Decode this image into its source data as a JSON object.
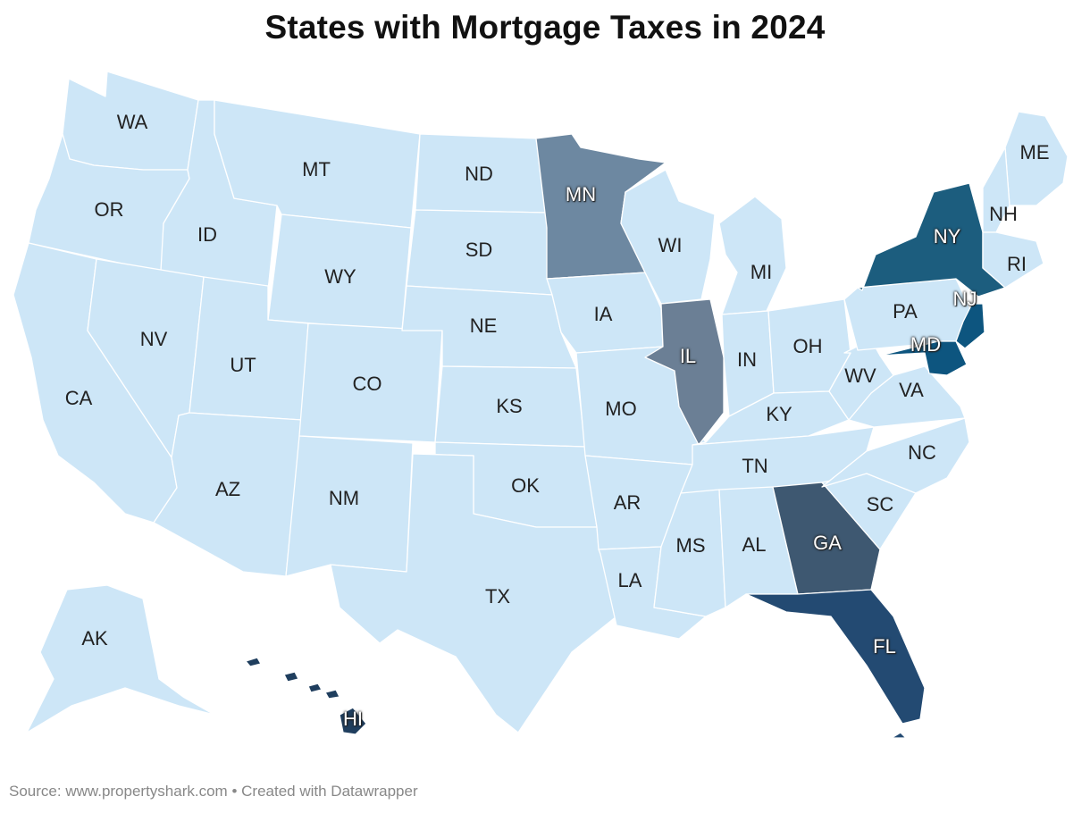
{
  "title": "States with Mortgage Taxes in 2024",
  "footer": {
    "source_label": "Source:",
    "source": "www.propertyshark.com",
    "separator": "•",
    "credit": "Created with Datawrapper"
  },
  "colors": {
    "no_tax": "#cde6f7",
    "MN": "#6d88a1",
    "IL": "#6b7f95",
    "NY": "#1c5d7e",
    "NJ": "#0d557f",
    "MD": "#0d557f",
    "GA": "#3e5871",
    "FL": "#234a72",
    "HI": "#1f3e5e",
    "border": "#ffffff"
  },
  "states_with_tax": [
    "MN",
    "IL",
    "NY",
    "NJ",
    "MD",
    "GA",
    "FL",
    "HI"
  ],
  "labels": [
    "WA",
    "OR",
    "CA",
    "ID",
    "NV",
    "MT",
    "WY",
    "UT",
    "AZ",
    "CO",
    "NM",
    "ND",
    "SD",
    "NE",
    "KS",
    "OK",
    "TX",
    "MN",
    "IA",
    "MO",
    "AR",
    "LA",
    "WI",
    "IL",
    "MI",
    "IN",
    "OH",
    "KY",
    "TN",
    "MS",
    "AL",
    "GA",
    "FL",
    "SC",
    "NC",
    "VA",
    "WV",
    "PA",
    "NY",
    "NJ",
    "MD",
    "ME",
    "NH",
    "RI",
    "AK",
    "HI"
  ]
}
